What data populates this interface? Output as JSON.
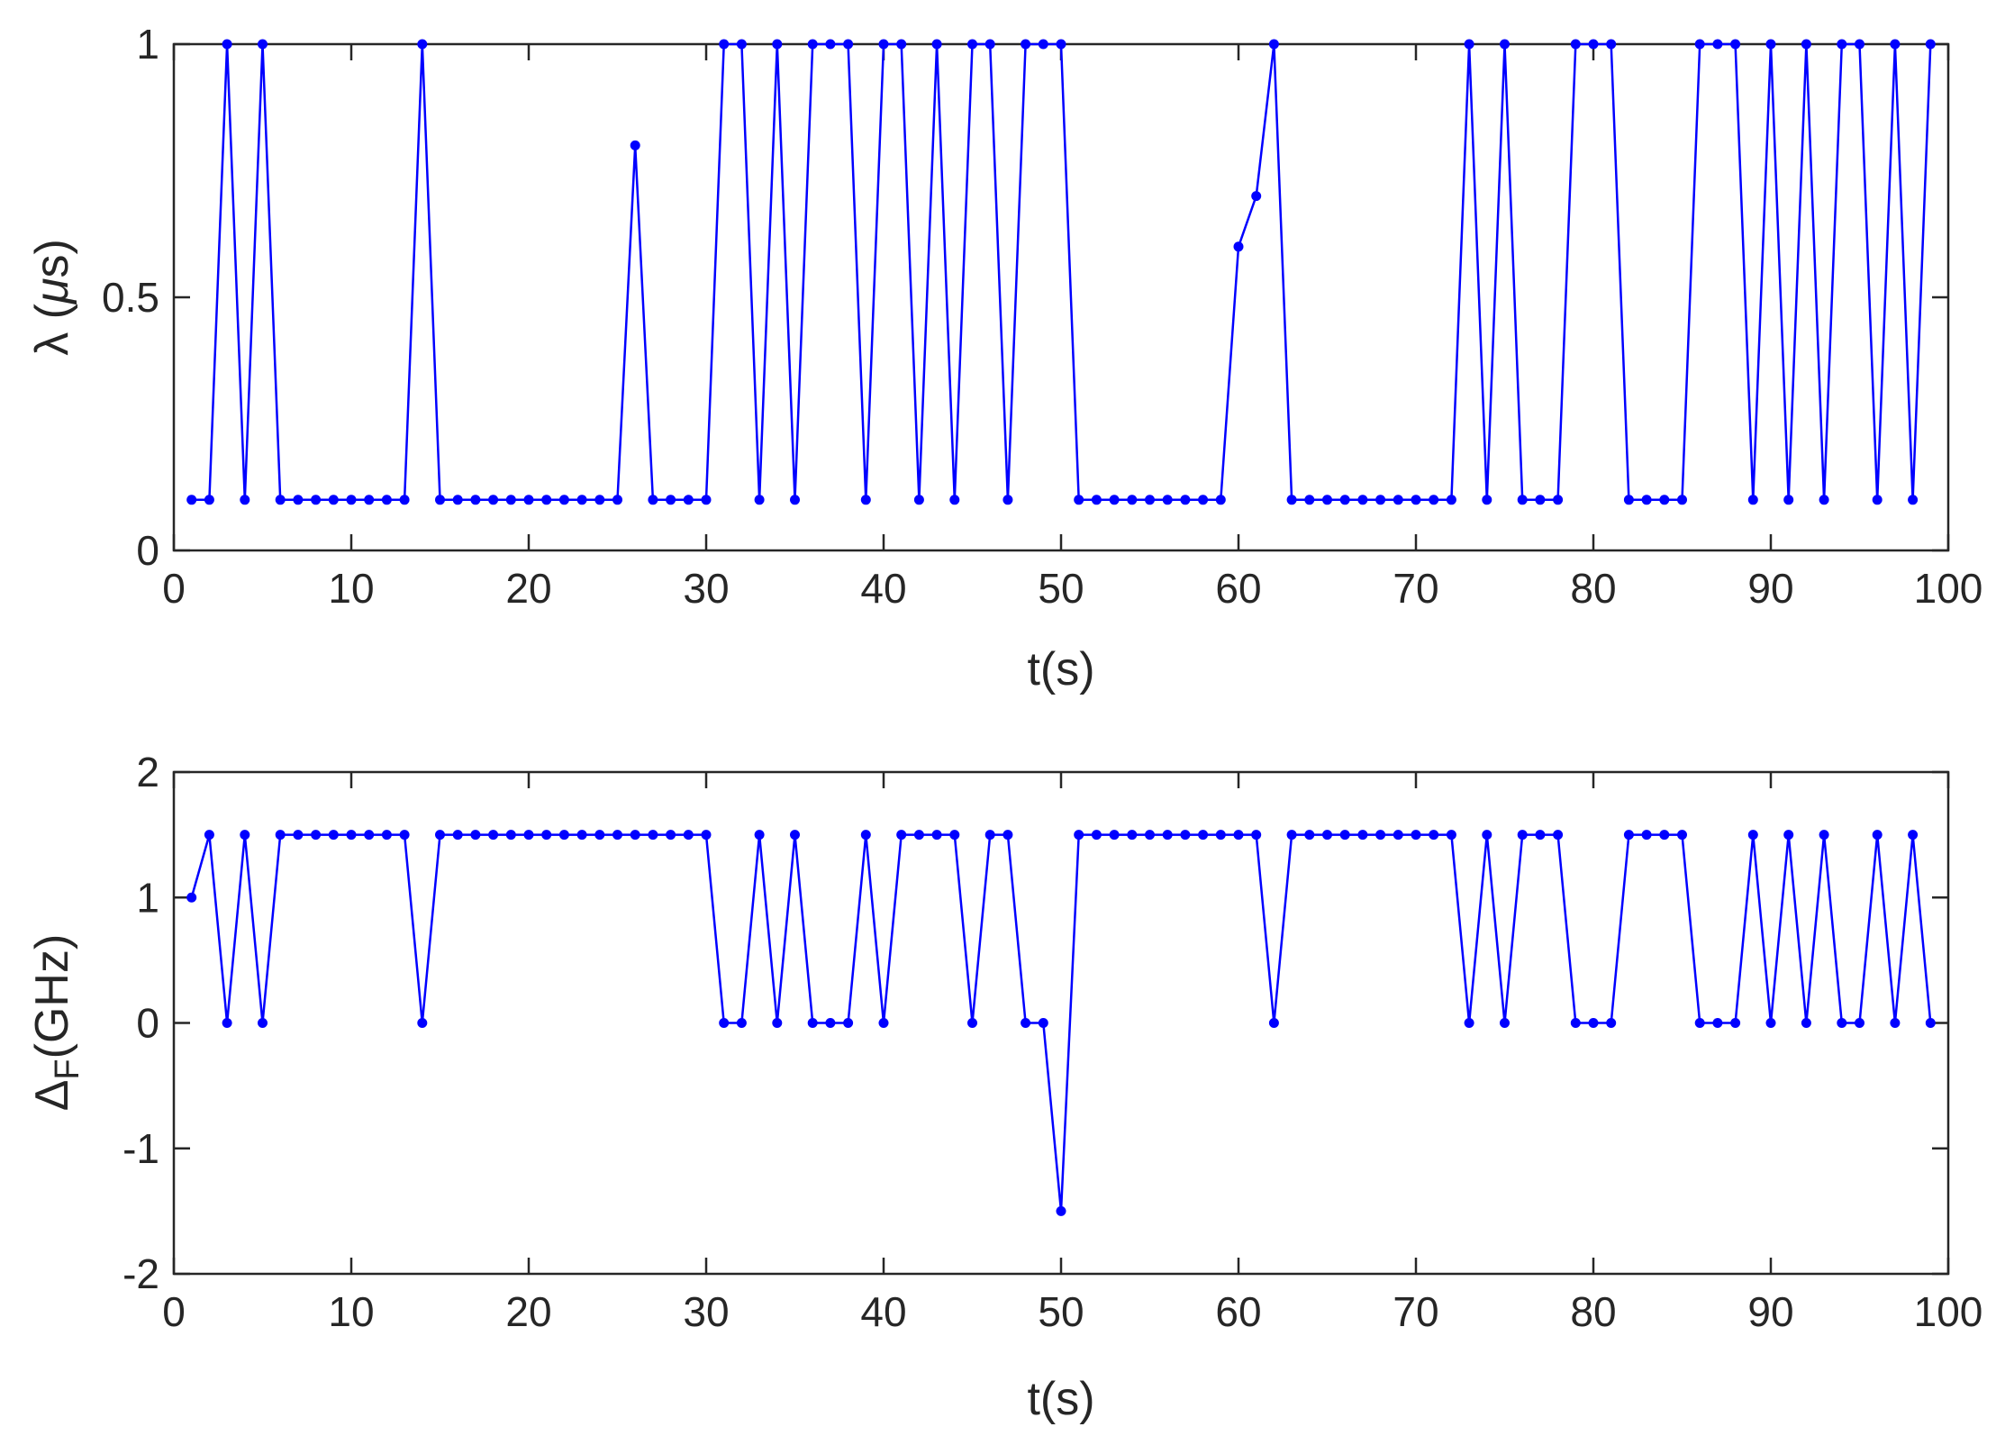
{
  "chart_data": [
    {
      "type": "line",
      "xlabel": "t(s)",
      "ylabel_symbol": "λ",
      "ylabel_unit_pre": " (",
      "ylabel_unit_mu": "μ",
      "ylabel_unit_post": "s)",
      "xlim": [
        0,
        100
      ],
      "ylim": [
        0,
        1
      ],
      "xticks": [
        0,
        10,
        20,
        30,
        40,
        50,
        60,
        70,
        80,
        90,
        100
      ],
      "xtick_labels": [
        "0",
        "10",
        "20",
        "30",
        "40",
        "50",
        "60",
        "70",
        "80",
        "90",
        "100"
      ],
      "yticks": [
        0,
        0.5,
        1
      ],
      "ytick_labels": [
        "0",
        "0.5",
        "1"
      ],
      "grid": false,
      "line_color": "#0000ff",
      "marker": "dot",
      "series": [
        {
          "x": [
            1,
            2,
            3,
            4,
            5,
            6,
            7,
            8,
            9,
            10,
            11,
            12,
            13,
            14,
            15,
            16,
            17,
            18,
            19,
            20,
            21,
            22,
            23,
            24,
            25,
            26,
            27,
            28,
            29,
            30,
            31,
            32,
            33,
            34,
            35,
            36,
            37,
            38,
            39,
            40,
            41,
            42,
            43,
            44,
            45,
            46,
            47,
            48,
            49,
            50,
            51,
            52,
            53,
            54,
            55,
            56,
            57,
            58,
            59,
            60,
            61,
            62,
            63,
            64,
            65,
            66,
            67,
            68,
            69,
            70,
            71,
            72,
            73,
            74,
            75,
            76,
            77,
            78,
            79,
            80,
            81,
            82,
            83,
            84,
            85,
            86,
            87,
            88,
            89,
            90,
            91,
            92,
            93,
            94,
            95,
            96,
            97,
            98,
            99
          ],
          "y": [
            0.1,
            0.1,
            1,
            0.1,
            1,
            0.1,
            0.1,
            0.1,
            0.1,
            0.1,
            0.1,
            0.1,
            0.1,
            1,
            0.1,
            0.1,
            0.1,
            0.1,
            0.1,
            0.1,
            0.1,
            0.1,
            0.1,
            0.1,
            0.1,
            0.8,
            0.1,
            0.1,
            0.1,
            0.1,
            1,
            1,
            0.1,
            1,
            0.1,
            1,
            1,
            1,
            0.1,
            1,
            1,
            0.1,
            1,
            0.1,
            1,
            1,
            0.1,
            1,
            1,
            1,
            0.1,
            0.1,
            0.1,
            0.1,
            0.1,
            0.1,
            0.1,
            0.1,
            0.1,
            0.6,
            0.7,
            1,
            0.1,
            0.1,
            0.1,
            0.1,
            0.1,
            0.1,
            0.1,
            0.1,
            0.1,
            0.1,
            1,
            0.1,
            1,
            0.1,
            0.1,
            0.1,
            1,
            1,
            1,
            0.1,
            0.1,
            0.1,
            0.1,
            1,
            1,
            1,
            0.1,
            1,
            0.1,
            1,
            0.1,
            1,
            1,
            0.1,
            1,
            0.1,
            1
          ]
        }
      ]
    },
    {
      "type": "line",
      "xlabel": "t(s)",
      "ylabel_symbol": "Δ",
      "ylabel_subscript": "F",
      "ylabel_unit": "(GHz)",
      "xlim": [
        0,
        100
      ],
      "ylim": [
        -2,
        2
      ],
      "xticks": [
        0,
        10,
        20,
        30,
        40,
        50,
        60,
        70,
        80,
        90,
        100
      ],
      "xtick_labels": [
        "0",
        "10",
        "20",
        "30",
        "40",
        "50",
        "60",
        "70",
        "80",
        "90",
        "100"
      ],
      "yticks": [
        -2,
        -1,
        0,
        1,
        2
      ],
      "ytick_labels": [
        "-2",
        "-1",
        "0",
        "1",
        "2"
      ],
      "grid": false,
      "line_color": "#0000ff",
      "marker": "dot",
      "series": [
        {
          "x": [
            1,
            2,
            3,
            4,
            5,
            6,
            7,
            8,
            9,
            10,
            11,
            12,
            13,
            14,
            15,
            16,
            17,
            18,
            19,
            20,
            21,
            22,
            23,
            24,
            25,
            26,
            27,
            28,
            29,
            30,
            31,
            32,
            33,
            34,
            35,
            36,
            37,
            38,
            39,
            40,
            41,
            42,
            43,
            44,
            45,
            46,
            47,
            48,
            49,
            50,
            51,
            52,
            53,
            54,
            55,
            56,
            57,
            58,
            59,
            60,
            61,
            62,
            63,
            64,
            65,
            66,
            67,
            68,
            69,
            70,
            71,
            72,
            73,
            74,
            75,
            76,
            77,
            78,
            79,
            80,
            81,
            82,
            83,
            84,
            85,
            86,
            87,
            88,
            89,
            90,
            91,
            92,
            93,
            94,
            95,
            96,
            97,
            98,
            99
          ],
          "y": [
            1,
            1.5,
            0,
            1.5,
            0,
            1.5,
            1.5,
            1.5,
            1.5,
            1.5,
            1.5,
            1.5,
            1.5,
            0,
            1.5,
            1.5,
            1.5,
            1.5,
            1.5,
            1.5,
            1.5,
            1.5,
            1.5,
            1.5,
            1.5,
            1.5,
            1.5,
            1.5,
            1.5,
            1.5,
            0,
            0,
            1.5,
            0,
            1.5,
            0,
            0,
            0,
            1.5,
            0,
            1.5,
            1.5,
            1.5,
            1.5,
            0,
            1.5,
            1.5,
            0,
            0,
            -1.5,
            1.5,
            1.5,
            1.5,
            1.5,
            1.5,
            1.5,
            1.5,
            1.5,
            1.5,
            1.5,
            1.5,
            0,
            1.5,
            1.5,
            1.5,
            1.5,
            1.5,
            1.5,
            1.5,
            1.5,
            1.5,
            1.5,
            0,
            1.5,
            0,
            1.5,
            1.5,
            1.5,
            0,
            0,
            0,
            1.5,
            1.5,
            1.5,
            1.5,
            0,
            0,
            0,
            1.5,
            0,
            1.5,
            0,
            1.5,
            0,
            0,
            1.5,
            0,
            1.5,
            0
          ]
        }
      ]
    }
  ]
}
